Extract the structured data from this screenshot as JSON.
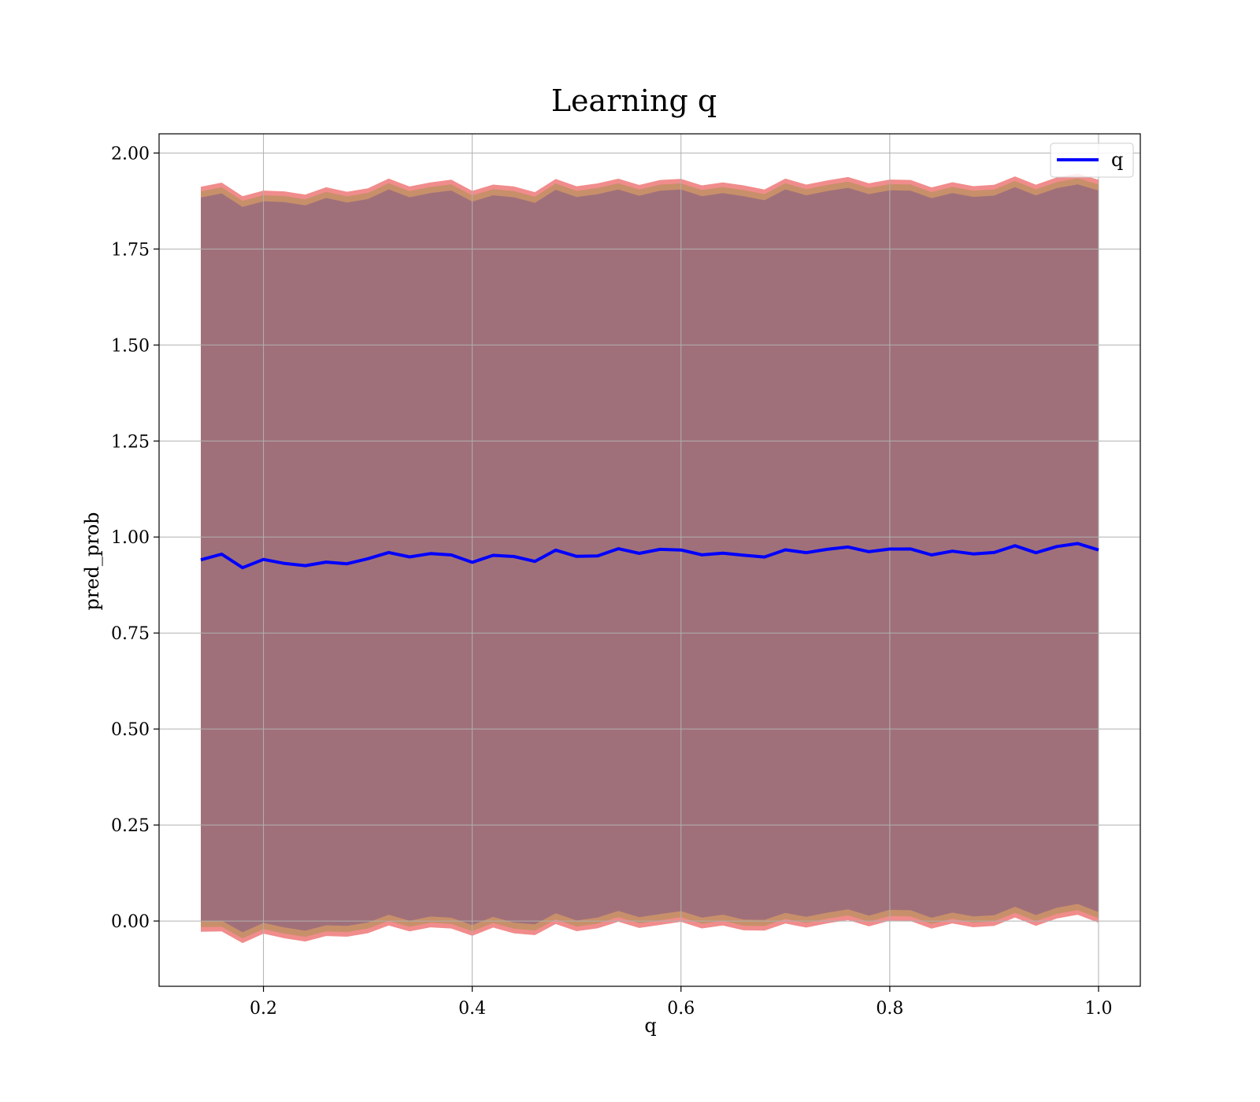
{
  "chart_data": {
    "type": "line",
    "title": "Learning q",
    "xlabel": "q",
    "ylabel": "pred_prob",
    "xlim": [
      0.1,
      1.04
    ],
    "ylim": [
      -0.17,
      2.05
    ],
    "x_ticks": [
      0.2,
      0.4,
      0.6,
      0.8,
      1.0
    ],
    "x_tick_labels": [
      "0.2",
      "0.4",
      "0.6",
      "0.8",
      "1.0"
    ],
    "y_ticks": [
      0.0,
      0.25,
      0.5,
      0.75,
      1.0,
      1.25,
      1.5,
      1.75,
      2.0
    ],
    "y_tick_labels": [
      "0.00",
      "0.25",
      "0.50",
      "0.75",
      "1.00",
      "1.25",
      "1.50",
      "1.75",
      "2.00"
    ],
    "grid": true,
    "legend": {
      "position": "top-right",
      "entries": [
        "q"
      ]
    },
    "colors": {
      "line": "#0000ff",
      "band_outer": "#f08080",
      "band_mid": "#c8906a",
      "band_inner": "#a0707a",
      "grid": "#b0b0b0"
    },
    "series": [
      {
        "name": "q",
        "x": [
          0.14,
          0.16,
          0.18,
          0.2,
          0.22,
          0.24,
          0.26,
          0.28,
          0.3,
          0.32,
          0.34,
          0.36,
          0.38,
          0.4,
          0.42,
          0.44,
          0.46,
          0.48,
          0.5,
          0.52,
          0.54,
          0.56,
          0.58,
          0.6,
          0.62,
          0.64,
          0.66,
          0.68,
          0.7,
          0.72,
          0.74,
          0.76,
          0.78,
          0.8,
          0.82,
          0.84,
          0.86,
          0.88,
          0.9,
          0.92,
          0.94,
          0.96,
          0.98,
          1.0
        ],
        "y": [
          0.935,
          0.945,
          0.93,
          0.94,
          0.935,
          0.94,
          0.93,
          0.935,
          0.945,
          0.945,
          0.95,
          0.95,
          0.945,
          0.945,
          0.95,
          0.955,
          0.95,
          0.96,
          0.955,
          0.95,
          0.955,
          0.96,
          0.96,
          0.96,
          0.965,
          0.955,
          0.96,
          0.96,
          0.96,
          0.965,
          0.965,
          0.96,
          0.965,
          0.96,
          0.965,
          0.965,
          0.96,
          0.965,
          0.97,
          0.97,
          0.965,
          0.97,
          0.97,
          0.97
        ],
        "band_upper_outer": [
          1.905,
          1.91,
          1.9,
          1.9,
          1.905,
          1.91,
          1.905,
          1.905,
          1.91,
          1.915,
          1.915,
          1.915,
          1.92,
          1.915,
          1.915,
          1.92,
          1.915,
          1.925,
          1.92,
          1.92,
          1.915,
          1.92,
          1.92,
          1.925,
          1.93,
          1.92,
          1.925,
          1.92,
          1.925,
          1.925,
          1.925,
          1.92,
          1.925,
          1.92,
          1.925,
          1.925,
          1.92,
          1.925,
          1.93,
          1.93,
          1.925,
          1.93,
          1.93,
          1.935
        ],
        "band_lower_outer": [
          -0.035,
          -0.04,
          -0.045,
          -0.035,
          -0.04,
          -0.035,
          -0.045,
          -0.035,
          -0.03,
          -0.03,
          -0.025,
          -0.025,
          -0.03,
          -0.025,
          -0.02,
          -0.025,
          -0.02,
          -0.015,
          -0.02,
          -0.02,
          -0.02,
          -0.015,
          -0.02,
          -0.01,
          -0.005,
          -0.015,
          -0.015,
          -0.01,
          -0.015,
          -0.01,
          -0.01,
          -0.015,
          -0.01,
          -0.01,
          -0.005,
          -0.005,
          -0.01,
          -0.005,
          0.0,
          0.0,
          -0.005,
          0.0,
          0.0,
          0.0
        ]
      }
    ]
  }
}
